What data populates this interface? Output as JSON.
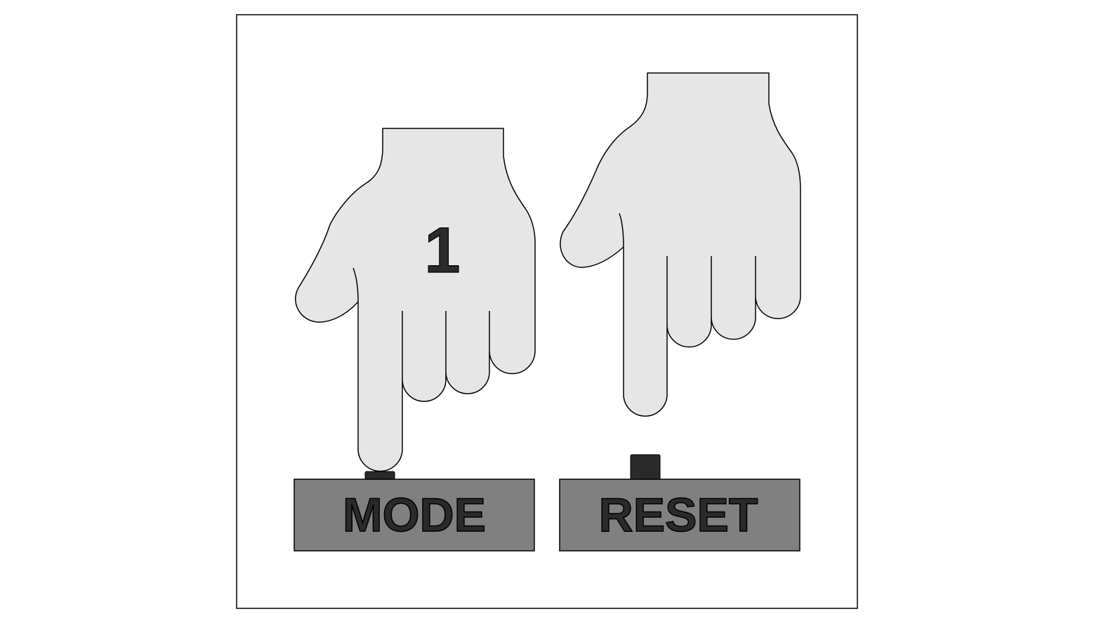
{
  "diagram": {
    "buttons": {
      "mode": {
        "label": "MODE"
      },
      "reset": {
        "label": "RESET"
      }
    },
    "hand_number": "1",
    "colors": {
      "background": "#ffffff",
      "frame_stroke": "#000000",
      "hand_fill": "#e6e6e6",
      "hand_stroke": "#000000",
      "button_fill": "#808080",
      "button_text": "#2a2a2a",
      "plunger_fill": "#2a2a2a",
      "number_fill": "#2a2a2a"
    }
  }
}
